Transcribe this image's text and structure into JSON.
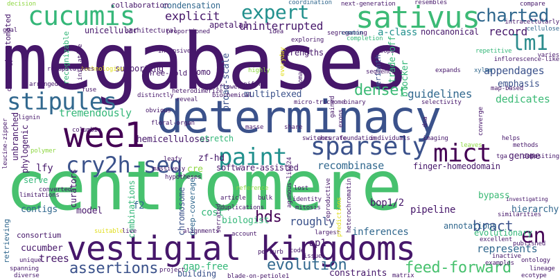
{
  "palette": {
    "purple": "#46176a",
    "indigo": "#3b528b",
    "blue": "#31688e",
    "teal": "#21908d",
    "green": "#35b779",
    "lime": "#8fd744",
    "yellow": "#e0dd1a"
  },
  "words": [
    {
      "text": "megabases",
      "color": "#46176a"
    },
    {
      "text": "centromere",
      "color": "#47c16e"
    },
    {
      "text": "determinacy",
      "color": "#3b528b"
    },
    {
      "text": "vestigial kingdoms",
      "color": "#46176a"
    },
    {
      "text": "sativus",
      "color": "#3cba76"
    },
    {
      "text": "cucumis",
      "color": "#35b779"
    },
    {
      "text": "wee1",
      "color": "#440154"
    },
    {
      "text": "sparsely",
      "color": "#3b528b"
    },
    {
      "text": "mict",
      "color": "#440154"
    },
    {
      "text": "paint",
      "color": "#21908d"
    },
    {
      "text": "cry2h-seq",
      "color": "#3b528b"
    },
    {
      "text": "stipules",
      "color": "#31688e"
    },
    {
      "text": "expert",
      "color": "#21908d"
    },
    {
      "text": "charted",
      "color": "#31688e"
    },
    {
      "text": "lm1",
      "color": "#2c8c8d"
    },
    {
      "text": "explicit",
      "color": "#46176a"
    },
    {
      "text": "uninterrupted",
      "color": "#46176a"
    },
    {
      "text": "record",
      "color": "#46176a"
    },
    {
      "text": "a-class",
      "color": "#21908d"
    },
    {
      "text": "noncanonical",
      "color": "#46176a"
    },
    {
      "text": "appendages",
      "color": "#3b528b"
    },
    {
      "text": "emphasis",
      "color": "#3b528b"
    },
    {
      "text": "guidelines",
      "color": "#31688e"
    },
    {
      "text": "dedicates",
      "color": "#3cba76"
    },
    {
      "text": "denser",
      "color": "#3cba76"
    },
    {
      "text": "multiplexed",
      "color": "#3b528b"
    },
    {
      "text": "tremendously",
      "color": "#35b779"
    },
    {
      "text": "hemicelluloses",
      "color": "#46176a"
    },
    {
      "text": "recombinase",
      "color": "#31688e"
    },
    {
      "text": "software-assisted",
      "color": "#46176a"
    },
    {
      "text": "finger-homeodomain",
      "color": "#46176a"
    },
    {
      "text": "genome",
      "color": "#46176a"
    },
    {
      "text": "assertions",
      "color": "#3b528b"
    },
    {
      "text": "evolution",
      "color": "#31688e"
    },
    {
      "text": "feed-forward",
      "color": "#47c16e"
    },
    {
      "text": "hds",
      "color": "#440154"
    },
    {
      "text": "en",
      "color": "#440154"
    },
    {
      "text": "represents",
      "color": "#31688e"
    },
    {
      "text": "bract",
      "color": "#3b528b"
    },
    {
      "text": "pipeline",
      "color": "#46176a"
    },
    {
      "text": "hierarchy",
      "color": "#31688e"
    },
    {
      "text": "evolutionary",
      "color": "#35b779"
    },
    {
      "text": "bypass",
      "color": "#3cba76"
    },
    {
      "text": "bop1/2",
      "color": "#46176a"
    },
    {
      "text": "annotations",
      "color": "#31688e"
    },
    {
      "text": "inferences",
      "color": "#31688e"
    },
    {
      "text": "roughly",
      "color": "#3b528b"
    },
    {
      "text": "ap1",
      "color": "#46176a"
    },
    {
      "text": "cost",
      "color": "#35b779"
    },
    {
      "text": "biologist",
      "color": "#35b779"
    },
    {
      "text": "deep-coverage",
      "color": "#31688e"
    },
    {
      "text": "chromosome",
      "color": "#3b528b"
    },
    {
      "text": "combinations",
      "color": "#35b779"
    },
    {
      "text": "curators",
      "color": "#46176a"
    },
    {
      "text": "model",
      "color": "#46176a"
    },
    {
      "text": "f2",
      "color": "#31688e"
    },
    {
      "text": "contigs",
      "color": "#31688e"
    },
    {
      "text": "consortium",
      "color": "#46176a"
    },
    {
      "text": "cucumber",
      "color": "#46176a"
    },
    {
      "text": "trees",
      "color": "#46176a"
    },
    {
      "text": "gap-free",
      "color": "#35b779"
    },
    {
      "text": "building",
      "color": "#3b528b"
    },
    {
      "text": "constraints",
      "color": "#46176a"
    },
    {
      "text": "lfy",
      "color": "#46176a"
    },
    {
      "text": "zf-hd",
      "color": "#46176a"
    },
    {
      "text": "cre",
      "color": "#8fd744"
    },
    {
      "text": "stretch",
      "color": "#35b779"
    },
    {
      "text": "serve",
      "color": "#35b779"
    },
    {
      "text": "broad-scale",
      "color": "#3b528b"
    },
    {
      "text": "strengths",
      "color": "#46176a"
    },
    {
      "text": "trade-off",
      "color": "#35b779"
    },
    {
      "text": "blocker",
      "color": "#35b779"
    },
    {
      "text": "perianth",
      "color": "#3b528b"
    },
    {
      "text": "supporting",
      "color": "#46176a"
    },
    {
      "text": "apetala1",
      "color": "#46176a"
    },
    {
      "text": "condensation",
      "color": "#31688e"
    },
    {
      "text": "unicellular",
      "color": "#46176a"
    },
    {
      "text": "architectural",
      "color": "#46176a"
    },
    {
      "text": "three-fold",
      "color": "#46176a"
    },
    {
      "text": "semi-automated",
      "color": "#46176a"
    },
    {
      "text": "unbranched",
      "color": "#46176a"
    },
    {
      "text": "phylogenic",
      "color": "#46176a"
    },
    {
      "text": "recognizable",
      "color": "#35b779"
    },
    {
      "text": "retrieving",
      "color": "#31688e"
    },
    {
      "text": "one-third",
      "color": "#46176a"
    },
    {
      "text": "collaboration",
      "color": "#46176a"
    },
    {
      "text": "coordination",
      "color": "#31688e"
    },
    {
      "text": "proportioned",
      "color": "#46176a"
    },
    {
      "text": "next-generation",
      "color": "#46176a"
    },
    {
      "text": "resembles",
      "color": "#46176a"
    },
    {
      "text": "compare",
      "color": "#46176a"
    },
    {
      "text": "intracellularly",
      "color": "#46176a"
    },
    {
      "text": "goal",
      "color": "#46176a"
    },
    {
      "text": "decision",
      "color": "#8fd744"
    },
    {
      "text": "exploring",
      "color": "#46176a"
    },
    {
      "text": "completion",
      "color": "#35b779"
    },
    {
      "text": "idea",
      "color": "#46176a"
    },
    {
      "text": "segregating",
      "color": "#46176a"
    },
    {
      "text": "common",
      "color": "#31688e"
    },
    {
      "text": "cellulose",
      "color": "#31688e"
    },
    {
      "text": "bop2",
      "color": "#46176a"
    },
    {
      "text": "varies",
      "color": "#46176a"
    },
    {
      "text": "repetitive",
      "color": "#35b779"
    },
    {
      "text": "inflorescence-like",
      "color": "#46176a"
    },
    {
      "text": "map-based",
      "color": "#46176a"
    },
    {
      "text": "sequencing",
      "color": "#46176a"
    },
    {
      "text": "expands",
      "color": "#46176a"
    },
    {
      "text": "xylem",
      "color": "#31688e"
    },
    {
      "text": "intensively",
      "color": "#46176a"
    },
    {
      "text": "technologies",
      "color": "#e0dd1a"
    },
    {
      "text": "cal",
      "color": "#46176a"
    },
    {
      "text": "homo",
      "color": "#46176a"
    },
    {
      "text": "uniform",
      "color": "#46176a"
    },
    {
      "text": "reveal",
      "color": "#46176a"
    },
    {
      "text": "biochemical",
      "color": "#46176a"
    },
    {
      "text": "micro-trichome",
      "color": "#46176a"
    },
    {
      "text": "binary",
      "color": "#46176a"
    },
    {
      "text": "selectivity",
      "color": "#46176a"
    },
    {
      "text": "fuse",
      "color": "#46176a"
    },
    {
      "text": "distinctly",
      "color": "#46176a"
    },
    {
      "text": "obvious",
      "color": "#46176a"
    },
    {
      "text": "floral-organ",
      "color": "#46176a"
    },
    {
      "text": "columbia",
      "color": "#46176a"
    },
    {
      "text": "polymer",
      "color": "#8fd744"
    },
    {
      "text": "masse",
      "color": "#46176a"
    },
    {
      "text": "share",
      "color": "#46176a"
    },
    {
      "text": "switches",
      "color": "#46176a"
    },
    {
      "text": "accurate",
      "color": "#46176a"
    },
    {
      "text": "foundation",
      "color": "#46176a"
    },
    {
      "text": "individuals",
      "color": "#46176a"
    },
    {
      "text": "imaging",
      "color": "#46176a"
    },
    {
      "text": "leaves",
      "color": "#8fd744"
    },
    {
      "text": "helps",
      "color": "#46176a"
    },
    {
      "text": "methods",
      "color": "#46176a"
    },
    {
      "text": "tga",
      "color": "#46176a"
    },
    {
      "text": "depositing",
      "color": "#46176a"
    },
    {
      "text": "massively",
      "color": "#46176a"
    },
    {
      "text": "hypotheses",
      "color": "#46176a"
    },
    {
      "text": "leafy",
      "color": "#46176a"
    },
    {
      "text": "converted",
      "color": "#46176a"
    },
    {
      "text": "limitations",
      "color": "#46176a"
    },
    {
      "text": "leucine-zipper",
      "color": "#46176a"
    },
    {
      "text": "lost",
      "color": "#46176a"
    },
    {
      "text": "reference",
      "color": "#8fd744"
    },
    {
      "text": "bulk",
      "color": "#46176a"
    },
    {
      "text": "article",
      "color": "#46176a"
    },
    {
      "text": "identity",
      "color": "#46176a"
    },
    {
      "text": "mitosis",
      "color": "#46176a"
    },
    {
      "text": "reproductive",
      "color": "#46176a"
    },
    {
      "text": "heterochromatin",
      "color": "#46176a"
    },
    {
      "text": "agamous-like24",
      "color": "#46176a"
    },
    {
      "text": "predictions",
      "color": "#e0dd1a"
    },
    {
      "text": "largest",
      "color": "#46176a"
    },
    {
      "text": "duplications",
      "color": "#46176a"
    },
    {
      "text": "similarities",
      "color": "#46176a"
    },
    {
      "text": "investigating",
      "color": "#46176a"
    },
    {
      "text": "excellent",
      "color": "#46176a"
    },
    {
      "text": "published",
      "color": "#46176a"
    },
    {
      "text": "inactive",
      "color": "#46176a"
    },
    {
      "text": "ontology",
      "color": "#46176a"
    },
    {
      "text": "examples",
      "color": "#46176a"
    },
    {
      "text": "lineage",
      "color": "#46176a"
    },
    {
      "text": "ecotype",
      "color": "#46176a"
    },
    {
      "text": "matrix",
      "color": "#46176a"
    },
    {
      "text": "blade-on-petiole1",
      "color": "#46176a"
    },
    {
      "text": "project",
      "color": "#46176a"
    },
    {
      "text": "perturb",
      "color": "#46176a"
    },
    {
      "text": "code",
      "color": "#46176a"
    },
    {
      "text": "issue",
      "color": "#46176a"
    },
    {
      "text": "live",
      "color": "#46176a"
    },
    {
      "text": "suitable",
      "color": "#e0dd1a"
    },
    {
      "text": "unique",
      "color": "#46176a"
    },
    {
      "text": "spanning",
      "color": "#46176a"
    },
    {
      "text": "diverse",
      "color": "#46176a"
    },
    {
      "text": "alignments",
      "color": "#46176a"
    },
    {
      "text": "account",
      "color": "#46176a"
    },
    {
      "text": "serrated",
      "color": "#46176a"
    },
    {
      "text": "arranged",
      "color": "#46176a"
    },
    {
      "text": "lignin",
      "color": "#46176a"
    },
    {
      "text": "orthology",
      "color": "#46176a"
    },
    {
      "text": "recapitulates",
      "color": "#46176a"
    },
    {
      "text": "initiative",
      "color": "#46176a"
    },
    {
      "text": "highly",
      "color": "#8fd744"
    },
    {
      "text": "everyday",
      "color": "#e0dd1a"
    },
    {
      "text": "biomass",
      "color": "#46176a"
    },
    {
      "text": "gained",
      "color": "#46176a"
    },
    {
      "text": "exons",
      "color": "#46176a"
    },
    {
      "text": "dna",
      "color": "#46176a"
    },
    {
      "text": "converge",
      "color": "#46176a"
    },
    {
      "text": "heterodimerize",
      "color": "#46176a"
    },
    {
      "text": "cauliflower",
      "color": "#46176a"
    },
    {
      "text": "spontaneous",
      "color": "#46176a"
    },
    {
      "text": "subtle",
      "color": "#e0dd1a"
    },
    {
      "text": "simple",
      "color": "#e0dd1a"
    }
  ]
}
